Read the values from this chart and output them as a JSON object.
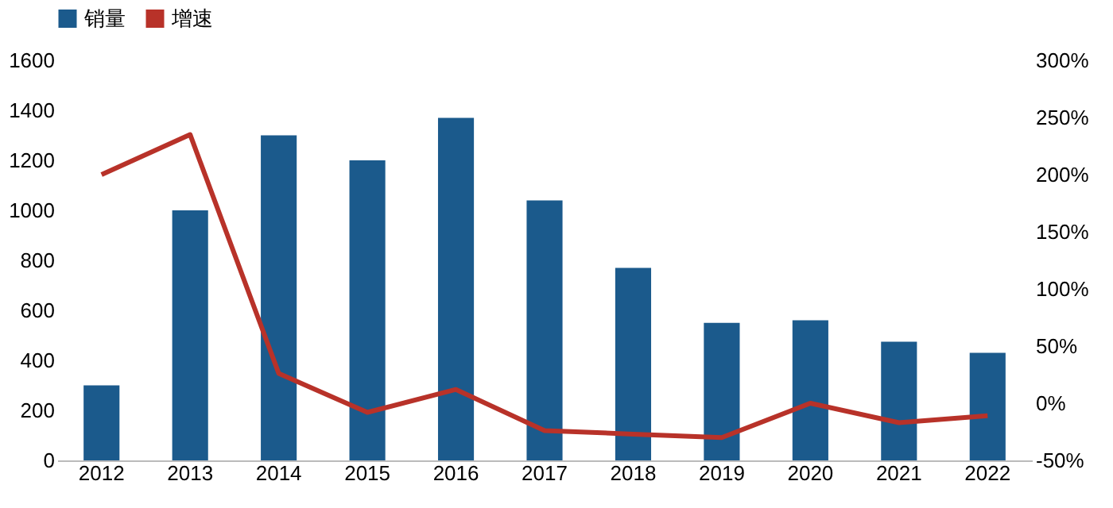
{
  "chart_data": {
    "type": "bar",
    "categories": [
      "2012",
      "2013",
      "2014",
      "2015",
      "2016",
      "2017",
      "2018",
      "2019",
      "2020",
      "2021",
      "2022"
    ],
    "series": [
      {
        "name": "销量",
        "color": "#1b5a8c",
        "values": [
          300,
          1000,
          1300,
          1200,
          1370,
          1040,
          770,
          550,
          560,
          475,
          430
        ]
      },
      {
        "name": "增速",
        "type": "line",
        "axis": "y2",
        "color": "#b83229",
        "values": [
          200,
          235,
          26,
          -8,
          12,
          -24,
          -27,
          -30,
          0,
          -17,
          -11
        ]
      }
    ],
    "ylim": [
      0,
      1600
    ],
    "yticks": [
      0,
      200,
      400,
      600,
      800,
      1000,
      1200,
      1400,
      1600
    ],
    "y2lim": [
      -50,
      300
    ],
    "y2ticks": [
      {
        "value": -50,
        "label": "-50%"
      },
      {
        "value": 0,
        "label": "0%"
      },
      {
        "value": 50,
        "label": "50%"
      },
      {
        "value": 100,
        "label": "100%"
      },
      {
        "value": 150,
        "label": "150%"
      },
      {
        "value": 200,
        "label": "200%"
      },
      {
        "value": 250,
        "label": "250%"
      },
      {
        "value": 300,
        "label": "300%"
      }
    ],
    "legend": "top",
    "grid": false,
    "line_style": "solid",
    "marker": "none"
  }
}
